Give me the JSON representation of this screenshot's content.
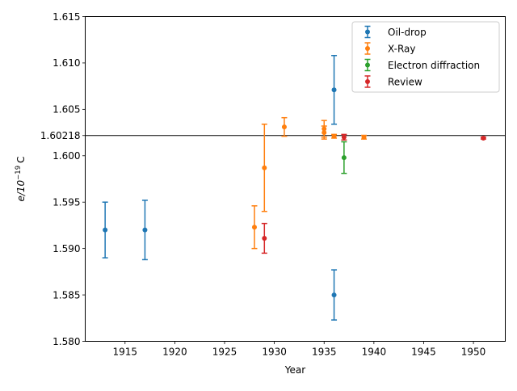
{
  "chart_data": {
    "type": "scatter",
    "title": "",
    "xlabel": "Year",
    "ylabel_main": "e/10",
    "ylabel_exp": "−19",
    "ylabel_unit": "C",
    "xlim": [
      1911.0,
      1953.2
    ],
    "ylim": [
      1.58,
      1.615
    ],
    "x_ticks": [
      1915,
      1920,
      1925,
      1930,
      1935,
      1940,
      1945,
      1950
    ],
    "x_tick_labels": [
      "1915",
      "1920",
      "1925",
      "1930",
      "1935",
      "1940",
      "1945",
      "1950"
    ],
    "y_ticks": [
      1.58,
      1.585,
      1.59,
      1.595,
      1.6,
      1.60218,
      1.605,
      1.61,
      1.615
    ],
    "y_tick_labels": [
      "1.580",
      "1.585",
      "1.590",
      "1.595",
      "1.600",
      "1.60218",
      "1.605",
      "1.610",
      "1.615"
    ],
    "reference_line": {
      "y": 1.60218,
      "color": "#000000"
    },
    "grid": false,
    "legend_position": "top-right",
    "series": [
      {
        "name": "Oil-drop",
        "color": "#1f77b4",
        "points": [
          {
            "x": 1913,
            "y": 1.592,
            "err": 0.003
          },
          {
            "x": 1917,
            "y": 1.592,
            "err": 0.0032
          },
          {
            "x": 1936,
            "y": 1.6071,
            "err": 0.0037
          },
          {
            "x": 1936,
            "y": 1.585,
            "err": 0.0027
          }
        ]
      },
      {
        "name": "X-Ray",
        "color": "#ff7f0e",
        "points": [
          {
            "x": 1928,
            "y": 1.5923,
            "err": 0.0023
          },
          {
            "x": 1929,
            "y": 1.5987,
            "err": 0.0047
          },
          {
            "x": 1931,
            "y": 1.6031,
            "err": 0.001
          },
          {
            "x": 1935,
            "y": 1.6029,
            "err": 0.0009
          },
          {
            "x": 1935,
            "y": 1.6025,
            "err": 0.0007
          },
          {
            "x": 1936,
            "y": 1.6021,
            "err": 0.0002
          },
          {
            "x": 1939,
            "y": 1.602,
            "err": 0.0002
          }
        ]
      },
      {
        "name": "Electron diffraction",
        "color": "#2ca02c",
        "points": [
          {
            "x": 1937,
            "y": 1.5998,
            "err": 0.0017
          }
        ]
      },
      {
        "name": "Review",
        "color": "#d62728",
        "points": [
          {
            "x": 1929,
            "y": 1.5911,
            "err": 0.0016
          },
          {
            "x": 1937,
            "y": 1.602,
            "err": 0.0003
          },
          {
            "x": 1951,
            "y": 1.6019,
            "err": 0.0001
          }
        ]
      }
    ]
  }
}
